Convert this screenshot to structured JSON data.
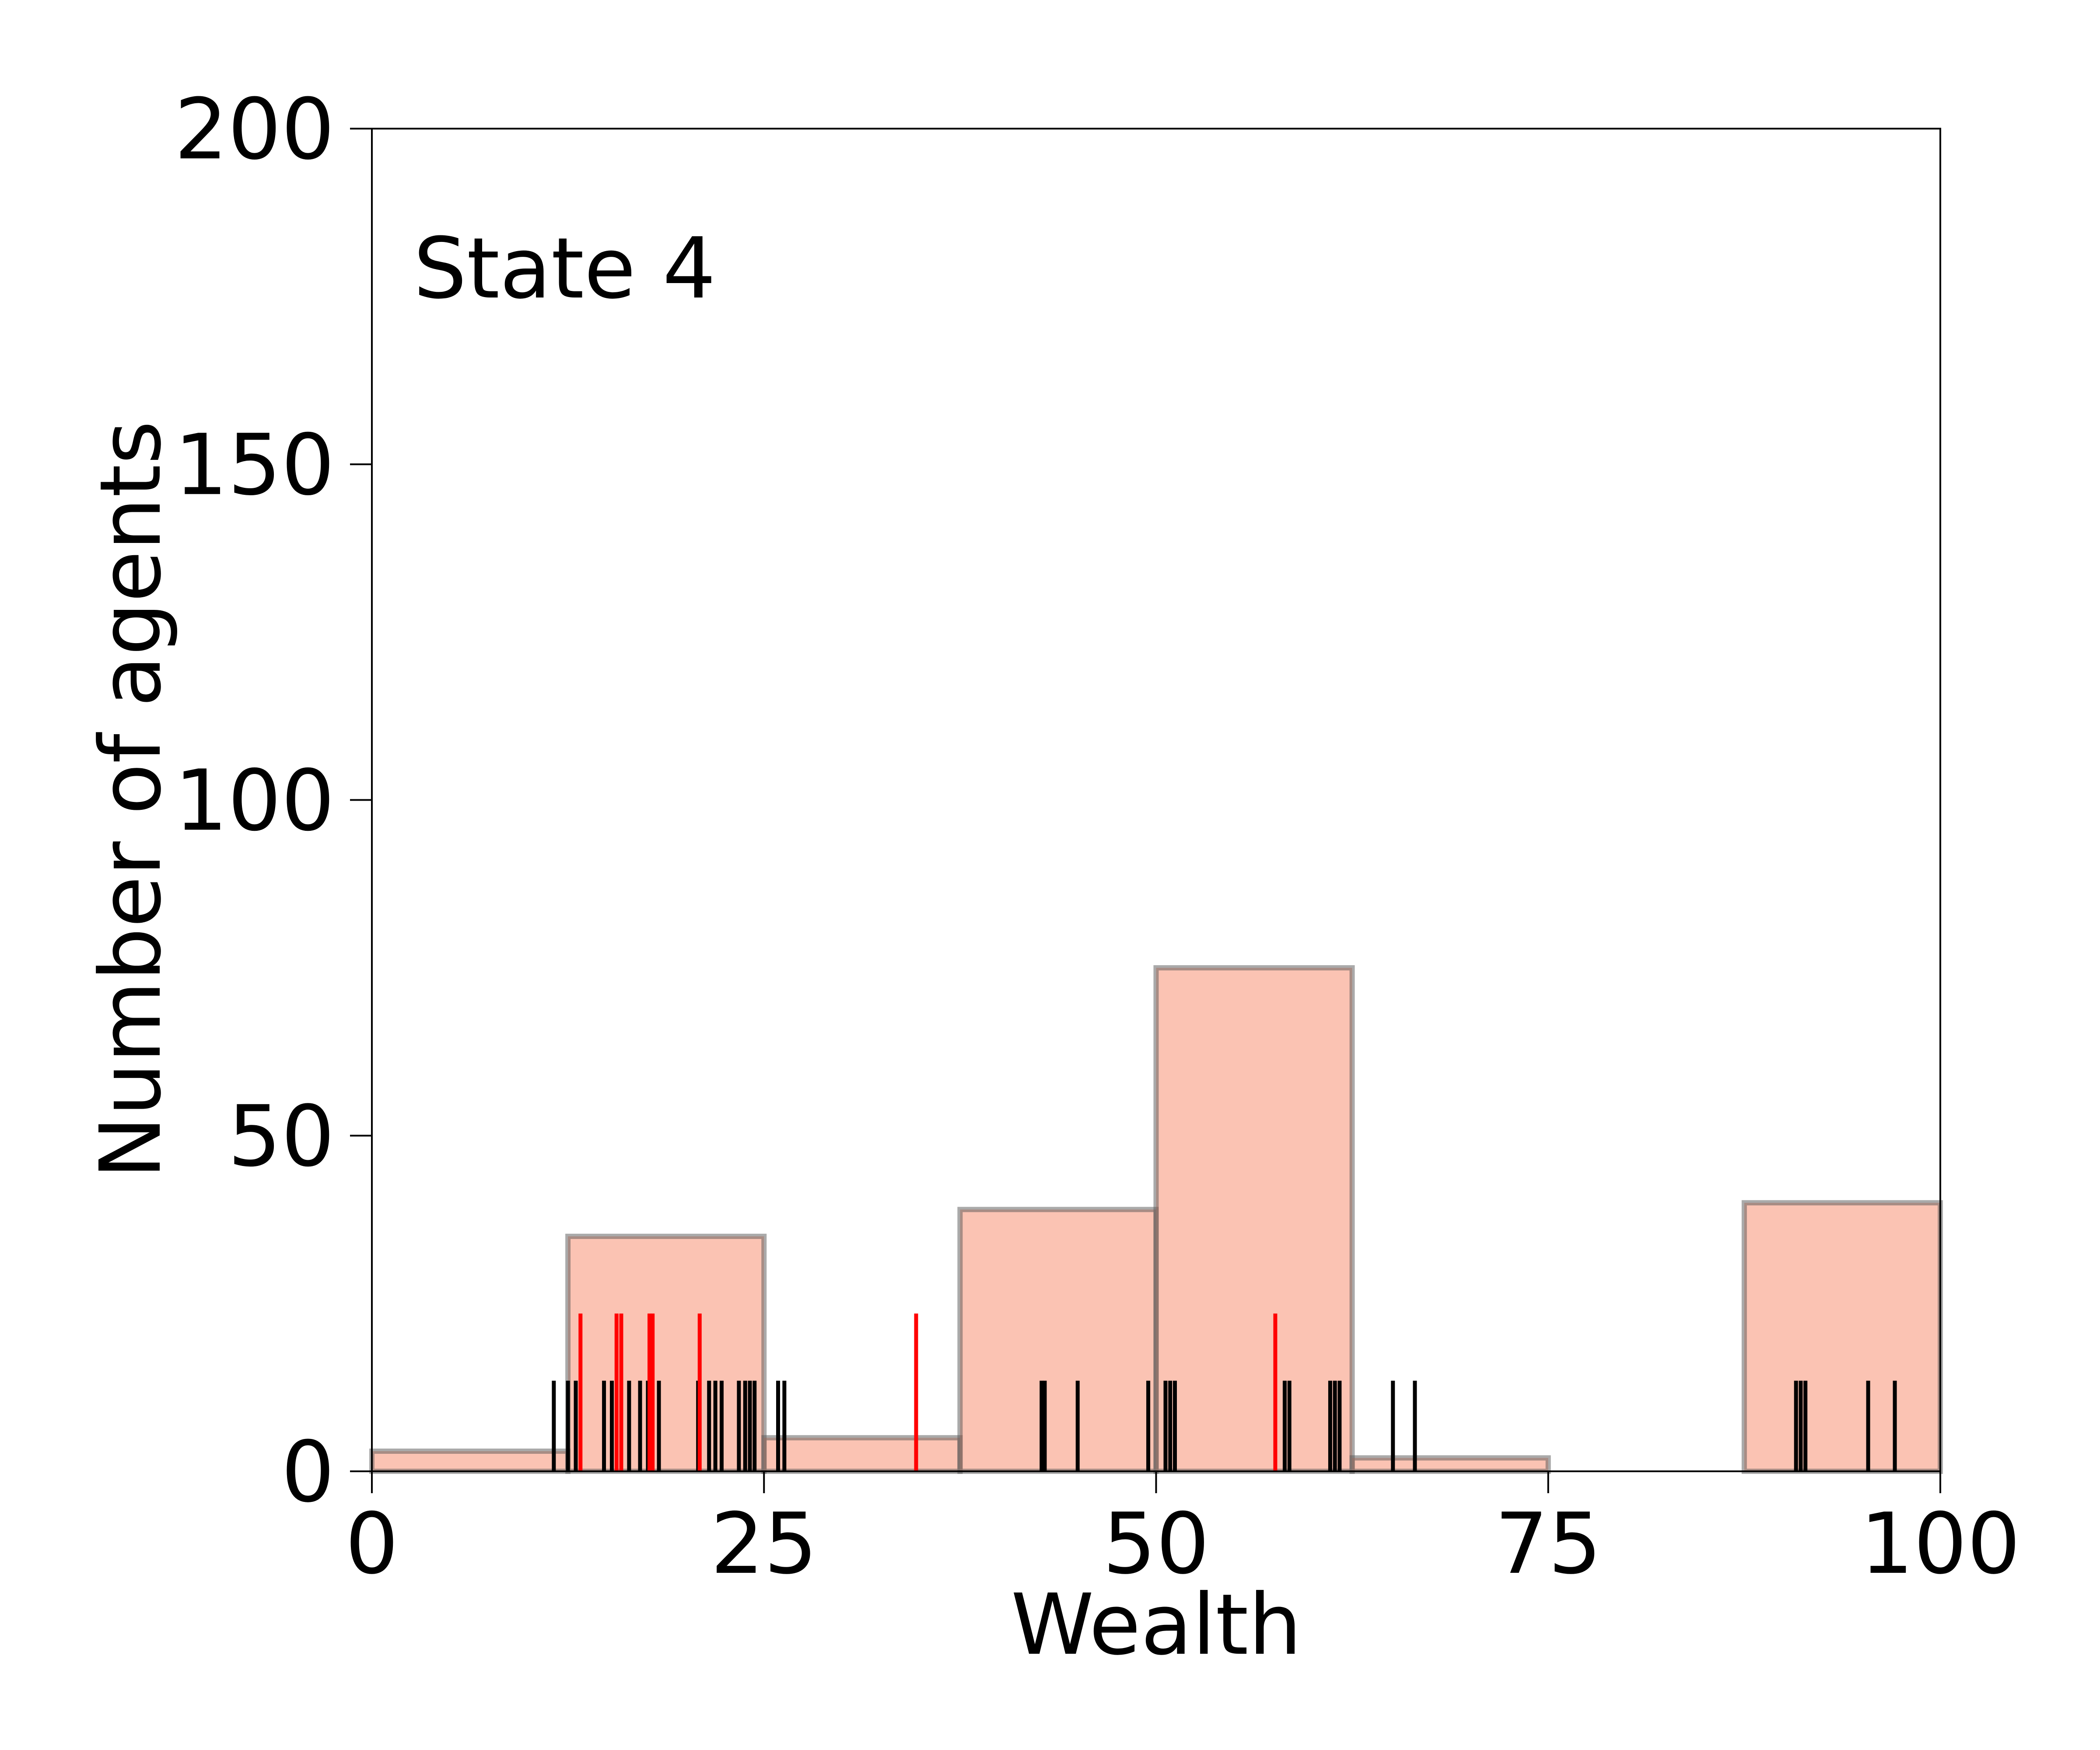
{
  "chart_data": {
    "type": "bar",
    "annotation": "State 4",
    "xlabel": "Wealth",
    "ylabel": "Number of agents",
    "xlim": [
      0,
      100
    ],
    "ylim": [
      0,
      200
    ],
    "xticks": [
      0,
      25,
      50,
      75,
      100
    ],
    "yticks": [
      0,
      50,
      100,
      150,
      200
    ],
    "xtick_labels": [
      "0",
      "25",
      "50",
      "75",
      "100"
    ],
    "ytick_labels": [
      "0",
      "50",
      "100",
      "150",
      "200"
    ],
    "grid": false,
    "bins": [
      {
        "x0": 0,
        "x1": 12.5,
        "count": 3
      },
      {
        "x0": 12.5,
        "x1": 25,
        "count": 35
      },
      {
        "x0": 25,
        "x1": 37.5,
        "count": 5
      },
      {
        "x0": 37.5,
        "x1": 50,
        "count": 39
      },
      {
        "x0": 50,
        "x1": 62.5,
        "count": 75
      },
      {
        "x0": 62.5,
        "x1": 75,
        "count": 2
      },
      {
        "x0": 75,
        "x1": 87.5,
        "count": 0
      },
      {
        "x0": 87.5,
        "x1": 100,
        "count": 40
      }
    ],
    "rug_black": [
      11.6,
      12.5,
      13.0,
      14.8,
      15.3,
      15.9,
      16.4,
      17.1,
      17.6,
      18.3,
      20.8,
      21.5,
      21.9,
      22.3,
      23.4,
      23.8,
      24.1,
      24.4,
      25.9,
      26.3,
      42.7,
      42.9,
      45.0,
      49.5,
      50.6,
      50.9,
      51.2,
      58.2,
      58.5,
      61.1,
      61.4,
      61.7,
      65.1,
      66.5,
      90.8,
      91.1,
      91.4,
      95.4,
      97.1
    ],
    "rug_red": [
      13.3,
      15.6,
      15.9,
      17.7,
      17.9,
      20.9,
      34.7,
      57.6
    ],
    "colors": {
      "bar_fill": "#f5704a",
      "bar_edge": "#555555",
      "rug_black": "#000000",
      "rug_red": "#ff0000"
    }
  }
}
